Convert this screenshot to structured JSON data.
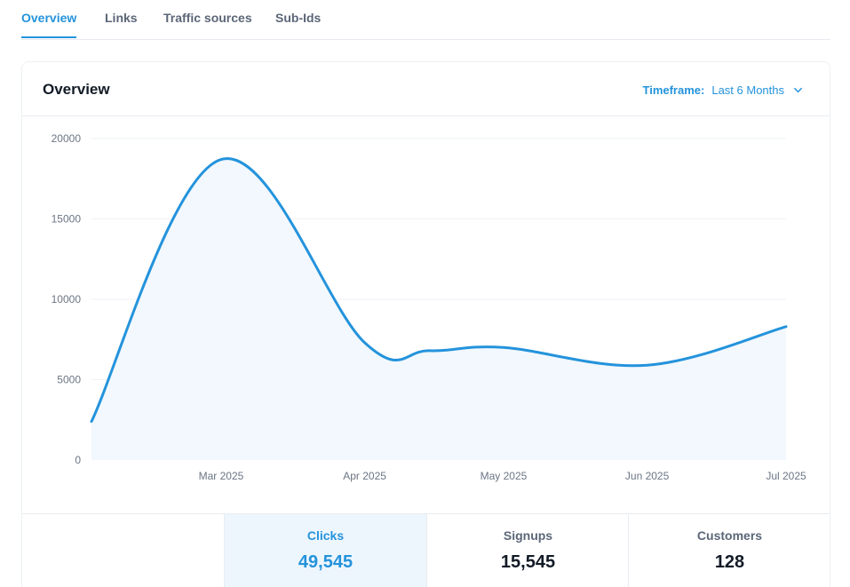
{
  "tabs": [
    {
      "label": "Overview",
      "active": true
    },
    {
      "label": "Links",
      "active": false
    },
    {
      "label": "Traffic sources",
      "active": false
    },
    {
      "label": "Sub-Ids",
      "active": false
    }
  ],
  "card": {
    "title": "Overview",
    "timeframe_label": "Timeframe:",
    "timeframe_value": "Last 6 Months"
  },
  "colors": {
    "accent": "#2493dc",
    "area_fill": "#f2f8fd",
    "grid": "#eef1f4",
    "tick_text": "#6b7685"
  },
  "chart_data": {
    "type": "area",
    "x": [
      "2025-02-01",
      "2025-03-01",
      "2025-04-01",
      "2025-04-15",
      "2025-05-01",
      "2025-06-01",
      "2025-07-01"
    ],
    "values": [
      2400,
      18700,
      7300,
      6800,
      7000,
      5900,
      8300
    ],
    "xticks": [
      "Mar 2025",
      "Apr 2025",
      "May 2025",
      "Jun 2025",
      "Jul 2025"
    ],
    "yticks": [
      "0",
      "5000",
      "10000",
      "15000",
      "20000"
    ],
    "ylim": [
      0,
      20000
    ],
    "grid": true,
    "title": "",
    "xlabel": "",
    "ylabel": ""
  },
  "stats": [
    {
      "label": "Clicks",
      "value": "49,545",
      "active": true
    },
    {
      "label": "Signups",
      "value": "15,545",
      "active": false
    },
    {
      "label": "Customers",
      "value": "128",
      "active": false
    }
  ],
  "icons": {
    "timeframe_toggle": "chevron-down-icon"
  }
}
